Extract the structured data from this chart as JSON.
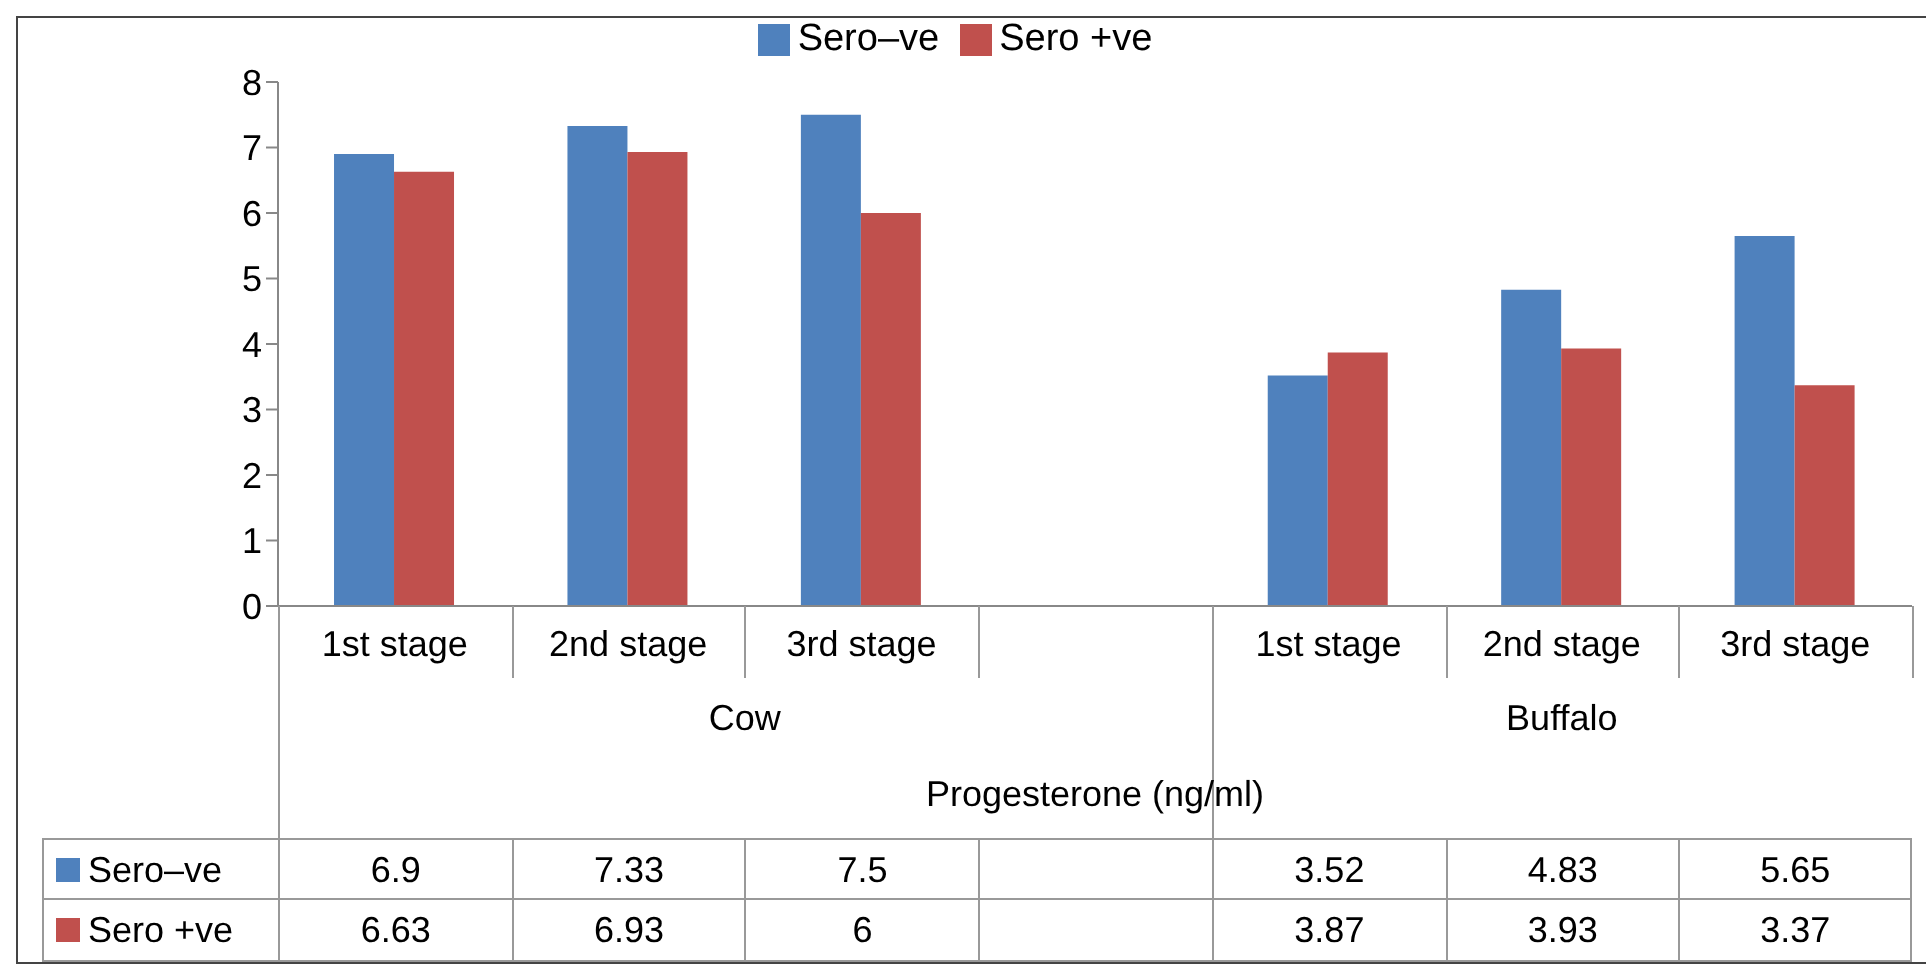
{
  "chart_data": {
    "type": "bar",
    "xlabel": "Progesterone  (ng/ml)",
    "categories": [
      "1st stage",
      "2nd stage",
      "3rd stage",
      null,
      "1st stage",
      "2nd stage",
      "3rd stage"
    ],
    "series": [
      {
        "name": "Sero–ve",
        "color": "#4f81bd",
        "values": [
          6.9,
          7.33,
          7.5,
          null,
          3.52,
          4.83,
          5.65
        ]
      },
      {
        "name": "Sero +ve",
        "color": "#c0504d",
        "values": [
          6.63,
          6.93,
          6,
          null,
          3.87,
          3.93,
          3.37
        ]
      }
    ],
    "annotations": [
      "Cow",
      "Buffalo"
    ],
    "ylim": [
      0,
      8
    ],
    "yticks": [
      0,
      1,
      2,
      3,
      4,
      5,
      6,
      7,
      8
    ],
    "grid": false,
    "legend": "top",
    "data_labels": true
  }
}
